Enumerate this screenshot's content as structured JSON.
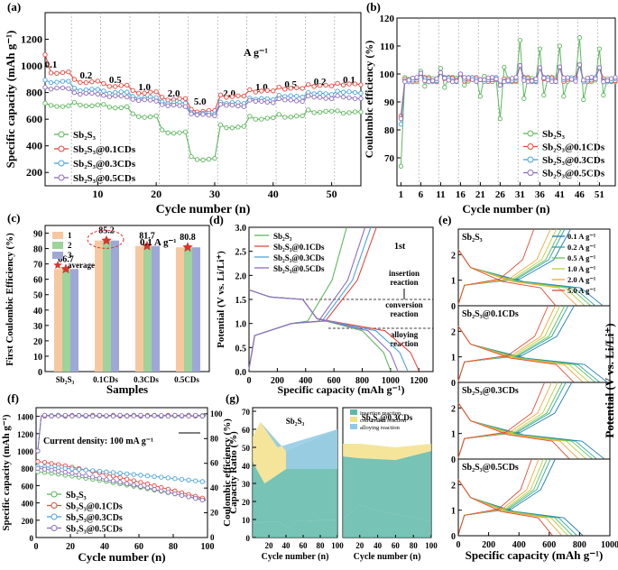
{
  "colors": {
    "sb2s3": "#5cb85c",
    "cds01": "#e8473f",
    "cds03": "#4aa3df",
    "cds05": "#8e6cc0",
    "bar1": "#f7c8a0",
    "bar2": "#9ed39a",
    "bar3": "#9ea8d8",
    "star": "#d9342b"
  },
  "panels": {
    "a": {
      "label": "(a)",
      "ylabel": "Specific capacity (mAh g⁻¹)",
      "xlabel": "Cycle number (n)",
      "unit_note": "A g⁻¹",
      "rates": [
        "0.1",
        "0.2",
        "0.5",
        "1.0",
        "2.0",
        "5.0",
        "2.0",
        "1.0",
        "0.5",
        "0.2",
        "0.1"
      ],
      "xticks": [
        "10",
        "20",
        "30",
        "40",
        "50"
      ],
      "yticks": [
        "200",
        "400",
        "600",
        "800",
        "1000",
        "1200"
      ],
      "legend": [
        "Sb₂S₃",
        "Sb₂S₃@0.1CDs",
        "Sb₂S₃@0.3CDs",
        "Sb₂S₃@0.5CDs"
      ]
    },
    "b": {
      "label": "(b)",
      "ylabel": "Coulombic efficiency (%)",
      "xlabel": "Cycle number (n)",
      "xticks": [
        "1",
        "6",
        "11",
        "16",
        "21",
        "26",
        "31",
        "36",
        "41",
        "46",
        "51"
      ],
      "yticks": [
        "70",
        "80",
        "90",
        "100",
        "110",
        "120"
      ],
      "legend": [
        "Sb₂S₃",
        "Sb₂S₃@0.1CDs",
        "Sb₂S₃@0.3CDs",
        "Sb₂S₃@0.5CDs"
      ]
    },
    "c": {
      "label": "(c)",
      "ylabel": "First Coulombic Efficiency (%)",
      "xlabel": "Samples",
      "note": "0.1 A g⁻¹",
      "categories": [
        "Sb₂S₃",
        "0.1CDs",
        "0.3CDs",
        "0.5CDs"
      ],
      "yticks": [
        "0",
        "10",
        "20",
        "30",
        "40",
        "50",
        "60",
        "70",
        "80",
        "90"
      ],
      "legend": [
        "1",
        "2",
        "3",
        "average"
      ]
    },
    "d": {
      "label": "(d)",
      "ylabel": "Potential (V vs. Li/Li⁺)",
      "xlabel": "Specific capacity (mAh g⁻¹)",
      "note": "1st",
      "regions": [
        "insertion reaction",
        "conversion reaction",
        "alloying reaction"
      ],
      "xticks": [
        "0",
        "200",
        "400",
        "600",
        "800",
        "1000",
        "1200"
      ],
      "yticks": [
        "0.0",
        "0.5",
        "1.0",
        "1.5",
        "2.0",
        "2.5",
        "3.0"
      ],
      "legend": [
        "Sb₂S₃",
        "Sb₂S₃@0.1CDs",
        "Sb₂S₃@0.3CDs",
        "Sb₂S₃@0.5CDs"
      ]
    },
    "e": {
      "label": "(e)",
      "ylabel": "Potential (V vs. Li/Li⁺)",
      "xlabel": "Specific capacity (mAh g⁻¹)",
      "subtitles": [
        "Sb₂S₃",
        "Sb₂S₃@0.1CDs",
        "Sb₂S₃@0.3CDs",
        "Sb₂S₃@0.5CDs"
      ],
      "legend": [
        "0.1 A g⁻¹",
        "0.2 A g⁻¹",
        "0.5 A g⁻¹",
        "1.0 A g⁻¹",
        "2.0 A g⁻¹",
        "5.0 A g⁻¹"
      ],
      "legend_colors": [
        "#1f7ab5",
        "#2aa7a0",
        "#5fc15a",
        "#b9cf3b",
        "#f0a43a",
        "#e24a33"
      ],
      "xticks": [
        "0",
        "200",
        "400",
        "600",
        "800",
        "1000"
      ],
      "yticks": [
        "0",
        "1",
        "2"
      ]
    },
    "f": {
      "label": "(f)",
      "ylabel": "Specific capacity (mAh g⁻¹)",
      "y2label": "Coulombic efficiency (%)",
      "xlabel": "Cycle number (n)",
      "note": "Current density: 100 mA g⁻¹",
      "xticks": [
        "0",
        "20",
        "40",
        "60",
        "80",
        "100"
      ],
      "yticks": [
        "0",
        "200",
        "400",
        "600",
        "800",
        "1000",
        "1200",
        "1400"
      ],
      "y2ticks": [
        "0",
        "20",
        "40",
        "60",
        "80",
        "100"
      ],
      "legend": [
        "Sb₂S₃",
        "Sb₂S₃@0.1CDs",
        "Sb₂S₃@0.3CDs",
        "Sb₂S₃@0.5CDs"
      ]
    },
    "g": {
      "label": "(g)",
      "ylabel": "Capacity Ratio (%)",
      "xlabel": "Cycle number (n)",
      "subtitles": [
        "Sb₂S₃",
        "Sb₂S₃@0.3CDs"
      ],
      "legend": [
        "insertion reaction",
        "conversion reaction",
        "alloying reaction"
      ],
      "legend_colors": [
        "#5fb8a8",
        "#f2e08a",
        "#8ec9e8"
      ],
      "xticks": [
        "20",
        "40",
        "60",
        "80",
        "100"
      ],
      "yticks": [
        "0",
        "10",
        "20",
        "30",
        "40",
        "50",
        "60",
        "70"
      ]
    }
  },
  "chart_data": [
    {
      "type": "line",
      "title": "(a)",
      "xlabel": "Cycle number (n)",
      "ylabel": "Specific capacity (mAh g-1)",
      "xlim": [
        1,
        55
      ],
      "ylim": [
        100,
        1400
      ],
      "series": [
        {
          "name": "Sb2S3",
          "x_ranges": [
            [
              1,
              5
            ],
            [
              6,
              10
            ],
            [
              11,
              15
            ],
            [
              16,
              20
            ],
            [
              21,
              25
            ],
            [
              26,
              30
            ],
            [
              31,
              35
            ],
            [
              36,
              40
            ],
            [
              41,
              45
            ],
            [
              46,
              50
            ],
            [
              51,
              55
            ]
          ],
          "values": [
            700,
            705,
            690,
            620,
            500,
            300,
            540,
            605,
            620,
            655,
            650
          ]
        },
        {
          "name": "Sb2S3@0.1CDs",
          "values": [
            950,
            880,
            850,
            800,
            750,
            660,
            770,
            810,
            830,
            850,
            860
          ]
        },
        {
          "name": "Sb2S3@0.3CDs",
          "values": [
            880,
            820,
            800,
            760,
            720,
            640,
            720,
            750,
            770,
            790,
            800
          ]
        },
        {
          "name": "Sb2S3@0.5CDs",
          "values": [
            830,
            790,
            770,
            740,
            700,
            630,
            700,
            730,
            740,
            760,
            760
          ]
        }
      ]
    },
    {
      "type": "line",
      "title": "(b)",
      "xlabel": "Cycle number (n)",
      "ylabel": "Coulombic efficiency (%)",
      "ylim": [
        60,
        120
      ]
    },
    {
      "type": "bar",
      "title": "(c)",
      "categories": [
        "Sb2S3",
        "0.1CDs",
        "0.3CDs",
        "0.5CDs"
      ],
      "series": [
        {
          "name": "1",
          "values": [
            66.7,
            85.2,
            81.7,
            80.8
          ]
        },
        {
          "name": "2",
          "values": [
            66.7,
            85.2,
            81.7,
            80.8
          ]
        },
        {
          "name": "3",
          "values": [
            66.7,
            85.2,
            81.7,
            80.8
          ]
        },
        {
          "name": "average",
          "values": [
            66.7,
            85.2,
            81.7,
            80.8
          ]
        }
      ],
      "ylim": [
        0,
        100
      ]
    },
    {
      "type": "line",
      "title": "(d)",
      "xlabel": "Specific capacity (mAh g-1)",
      "ylabel": "Potential (V vs. Li/Li+)",
      "xlim": [
        0,
        1300
      ],
      "ylim": [
        0,
        3
      ]
    },
    {
      "type": "line",
      "title": "(e)",
      "xlabel": "Specific capacity (mAh g-1)",
      "ylabel": "Potential (V vs. Li/Li+)",
      "xlim": [
        0,
        1000
      ],
      "ylim": [
        0,
        3
      ]
    },
    {
      "type": "line",
      "title": "(f)",
      "xlabel": "Cycle number (n)",
      "ylabel": "Specific capacity (mAh g-1)",
      "xlim": [
        0,
        100
      ],
      "ylim": [
        0,
        1500
      ],
      "series": [
        {
          "name": "Sb2S3",
          "start": 760,
          "end": 430
        },
        {
          "name": "Sb2S3@0.1CDs",
          "start": 880,
          "end": 440
        },
        {
          "name": "Sb2S3@0.3CDs",
          "start": 820,
          "end": 640
        },
        {
          "name": "Sb2S3@0.5CDs",
          "start": 800,
          "end": 420
        }
      ]
    },
    {
      "type": "area",
      "title": "(g)",
      "xlabel": "Cycle number (n)",
      "ylabel": "Capacity Ratio (%)",
      "ylim": [
        0,
        70
      ]
    }
  ]
}
